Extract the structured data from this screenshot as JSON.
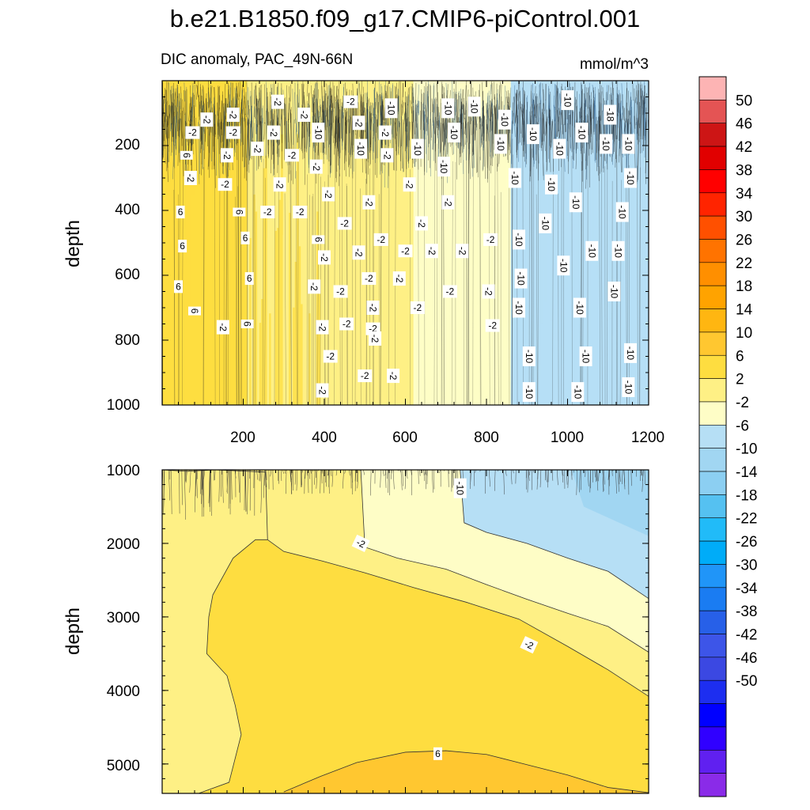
{
  "title": "b.e21.B1850.f09_g17.CMIP6-piControl.001",
  "subtitle_left": "DIC anomaly, PAC_49N-66N",
  "units": "mmol/m^3",
  "chart_data": [
    {
      "type": "heatmap",
      "panel": "upper",
      "ylabel": "depth",
      "xlim": [
        0,
        1200
      ],
      "ylim": [
        0,
        1000
      ],
      "y_reversed": true,
      "x_ticks": [
        200,
        400,
        600,
        800,
        1000,
        1200
      ],
      "y_ticks": [
        200,
        400,
        600,
        800,
        1000
      ],
      "field_regions": [
        {
          "x_range": [
            0,
            210
          ],
          "value_range": [
            2,
            6
          ]
        },
        {
          "x_range": [
            210,
            400
          ],
          "value_range": [
            -2,
            6
          ]
        },
        {
          "x_range": [
            400,
            620
          ],
          "value_range": [
            -2,
            2
          ]
        },
        {
          "x_range": [
            620,
            860
          ],
          "value_range": [
            -6,
            -2
          ]
        },
        {
          "x_range": [
            860,
            1200
          ],
          "value_range": [
            -10,
            -6
          ]
        }
      ],
      "contour_labels": [
        {
          "x": 110,
          "y": 120,
          "text": "-2"
        },
        {
          "x": 175,
          "y": 105,
          "text": "-2"
        },
        {
          "x": 285,
          "y": 65,
          "text": "-2"
        },
        {
          "x": 350,
          "y": 105,
          "text": "-2"
        },
        {
          "x": 465,
          "y": 65,
          "text": "-2"
        },
        {
          "x": 565,
          "y": 85,
          "text": "-10"
        },
        {
          "x": 705,
          "y": 85,
          "text": "-10"
        },
        {
          "x": 770,
          "y": 80,
          "text": "-10"
        },
        {
          "x": 845,
          "y": 120,
          "text": "-10"
        },
        {
          "x": 915,
          "y": 165,
          "text": "-10"
        },
        {
          "x": 1000,
          "y": 60,
          "text": "-10"
        },
        {
          "x": 1105,
          "y": 105,
          "text": "-18"
        },
        {
          "x": 75,
          "y": 160,
          "text": "-2"
        },
        {
          "x": 175,
          "y": 160,
          "text": "-2"
        },
        {
          "x": 275,
          "y": 160,
          "text": "-2"
        },
        {
          "x": 385,
          "y": 160,
          "text": "-10"
        },
        {
          "x": 485,
          "y": 130,
          "text": "-2"
        },
        {
          "x": 550,
          "y": 160,
          "text": "-2"
        },
        {
          "x": 720,
          "y": 160,
          "text": "-10"
        },
        {
          "x": 1035,
          "y": 160,
          "text": "-10"
        },
        {
          "x": 60,
          "y": 230,
          "text": "6"
        },
        {
          "x": 160,
          "y": 230,
          "text": "-2"
        },
        {
          "x": 235,
          "y": 210,
          "text": "-2"
        },
        {
          "x": 320,
          "y": 230,
          "text": "-2"
        },
        {
          "x": 490,
          "y": 210,
          "text": "-10"
        },
        {
          "x": 555,
          "y": 230,
          "text": "-2"
        },
        {
          "x": 630,
          "y": 210,
          "text": "-10"
        },
        {
          "x": 835,
          "y": 195,
          "text": "-10"
        },
        {
          "x": 980,
          "y": 210,
          "text": "-10"
        },
        {
          "x": 1095,
          "y": 195,
          "text": "-10"
        },
        {
          "x": 1150,
          "y": 195,
          "text": "-10"
        },
        {
          "x": 70,
          "y": 300,
          "text": "-2"
        },
        {
          "x": 155,
          "y": 320,
          "text": "-2"
        },
        {
          "x": 290,
          "y": 320,
          "text": "-2"
        },
        {
          "x": 380,
          "y": 265,
          "text": "-2"
        },
        {
          "x": 695,
          "y": 265,
          "text": "-10"
        },
        {
          "x": 870,
          "y": 300,
          "text": "-10"
        },
        {
          "x": 960,
          "y": 320,
          "text": "-10"
        },
        {
          "x": 1155,
          "y": 300,
          "text": "-10"
        },
        {
          "x": 410,
          "y": 350,
          "text": "-2"
        },
        {
          "x": 610,
          "y": 320,
          "text": "-2"
        },
        {
          "x": 45,
          "y": 405,
          "text": "6"
        },
        {
          "x": 190,
          "y": 405,
          "text": "6"
        },
        {
          "x": 260,
          "y": 405,
          "text": "-2"
        },
        {
          "x": 340,
          "y": 405,
          "text": "-2"
        },
        {
          "x": 510,
          "y": 375,
          "text": "-2"
        },
        {
          "x": 705,
          "y": 375,
          "text": "-2"
        },
        {
          "x": 1020,
          "y": 375,
          "text": "-10"
        },
        {
          "x": 1135,
          "y": 405,
          "text": "-10"
        },
        {
          "x": 450,
          "y": 440,
          "text": "-2"
        },
        {
          "x": 640,
          "y": 440,
          "text": "-2"
        },
        {
          "x": 945,
          "y": 440,
          "text": "-10"
        },
        {
          "x": 50,
          "y": 510,
          "text": "6"
        },
        {
          "x": 205,
          "y": 485,
          "text": "6"
        },
        {
          "x": 385,
          "y": 490,
          "text": "6"
        },
        {
          "x": 540,
          "y": 490,
          "text": "-2"
        },
        {
          "x": 810,
          "y": 490,
          "text": "-2"
        },
        {
          "x": 880,
          "y": 490,
          "text": "-10"
        },
        {
          "x": 400,
          "y": 545,
          "text": "-2"
        },
        {
          "x": 485,
          "y": 530,
          "text": "-2"
        },
        {
          "x": 600,
          "y": 525,
          "text": "-2"
        },
        {
          "x": 665,
          "y": 525,
          "text": "-2"
        },
        {
          "x": 740,
          "y": 525,
          "text": "-2"
        },
        {
          "x": 1060,
          "y": 525,
          "text": "-10"
        },
        {
          "x": 1125,
          "y": 525,
          "text": "-10"
        },
        {
          "x": 990,
          "y": 570,
          "text": "-10"
        },
        {
          "x": 510,
          "y": 610,
          "text": "-2"
        },
        {
          "x": 585,
          "y": 610,
          "text": "-2"
        },
        {
          "x": 885,
          "y": 610,
          "text": "-10"
        },
        {
          "x": 40,
          "y": 635,
          "text": "6"
        },
        {
          "x": 215,
          "y": 610,
          "text": "6"
        },
        {
          "x": 375,
          "y": 635,
          "text": "-2"
        },
        {
          "x": 440,
          "y": 650,
          "text": "-2"
        },
        {
          "x": 710,
          "y": 650,
          "text": "-2"
        },
        {
          "x": 805,
          "y": 650,
          "text": "-2"
        },
        {
          "x": 1115,
          "y": 650,
          "text": "-10"
        },
        {
          "x": 520,
          "y": 700,
          "text": "-2"
        },
        {
          "x": 630,
          "y": 700,
          "text": "-2"
        },
        {
          "x": 880,
          "y": 700,
          "text": "-10"
        },
        {
          "x": 1030,
          "y": 700,
          "text": "-10"
        },
        {
          "x": 80,
          "y": 710,
          "text": "6"
        },
        {
          "x": 150,
          "y": 760,
          "text": "-2"
        },
        {
          "x": 210,
          "y": 750,
          "text": "6"
        },
        {
          "x": 395,
          "y": 760,
          "text": "-2"
        },
        {
          "x": 455,
          "y": 750,
          "text": "-2"
        },
        {
          "x": 520,
          "y": 765,
          "text": "-2"
        },
        {
          "x": 815,
          "y": 755,
          "text": "-2"
        },
        {
          "x": 525,
          "y": 795,
          "text": "-2"
        },
        {
          "x": 415,
          "y": 850,
          "text": "-2"
        },
        {
          "x": 905,
          "y": 850,
          "text": "-10"
        },
        {
          "x": 1045,
          "y": 850,
          "text": "-10"
        },
        {
          "x": 1155,
          "y": 840,
          "text": "-10"
        },
        {
          "x": 500,
          "y": 910,
          "text": "-2"
        },
        {
          "x": 570,
          "y": 910,
          "text": "-2"
        },
        {
          "x": 395,
          "y": 955,
          "text": "-2"
        },
        {
          "x": 905,
          "y": 960,
          "text": "-10"
        },
        {
          "x": 1025,
          "y": 960,
          "text": "-10"
        },
        {
          "x": 1150,
          "y": 945,
          "text": "-10"
        }
      ]
    },
    {
      "type": "heatmap",
      "panel": "lower",
      "ylabel": "depth",
      "xlim": [
        0,
        1200
      ],
      "ylim": [
        1000,
        5400
      ],
      "y_reversed": true,
      "y_ticks": [
        1000,
        2000,
        3000,
        4000,
        5000
      ],
      "contour_lines": [
        {
          "level": -2,
          "points": [
            [
              0,
              1000
            ],
            [
              60,
              1020
            ],
            [
              130,
              1000
            ],
            [
              255,
              1030
            ],
            [
              260,
              1950
            ],
            [
              300,
              2110
            ],
            [
              395,
              2240
            ],
            [
              500,
              2400
            ],
            [
              620,
              2600
            ],
            [
              750,
              2800
            ],
            [
              880,
              3030
            ],
            [
              1000,
              3400
            ],
            [
              1100,
              3720
            ],
            [
              1200,
              4080
            ]
          ]
        },
        {
          "level": -6,
          "points": [
            [
              490,
              1000
            ],
            [
              500,
              2050
            ],
            [
              580,
              2200
            ],
            [
              700,
              2350
            ],
            [
              800,
              2560
            ],
            [
              900,
              2760
            ],
            [
              1000,
              2950
            ],
            [
              1100,
              3130
            ],
            [
              1200,
              3480
            ]
          ]
        },
        {
          "level": -10,
          "points": [
            [
              735,
              1000
            ],
            [
              745,
              1720
            ],
            [
              800,
              1850
            ],
            [
              900,
              2000
            ],
            [
              1000,
              2200
            ],
            [
              1100,
              2380
            ],
            [
              1200,
              2750
            ]
          ]
        },
        {
          "level": 6,
          "points": [
            [
              300,
              5380
            ],
            [
              390,
              5170
            ],
            [
              480,
              4980
            ],
            [
              600,
              4840
            ],
            [
              700,
              4820
            ],
            [
              800,
              4870
            ],
            [
              900,
              5010
            ],
            [
              1000,
              5150
            ],
            [
              1100,
              5320
            ],
            [
              1200,
              5390
            ]
          ]
        },
        {
          "level": 2,
          "points": [
            [
              90,
              5400
            ],
            [
              165,
              5250
            ],
            [
              195,
              4600
            ],
            [
              180,
              4200
            ],
            [
              160,
              3800
            ],
            [
              110,
              3500
            ],
            [
              115,
              3000
            ],
            [
              125,
              2700
            ],
            [
              175,
              2200
            ],
            [
              230,
              1950
            ],
            [
              260,
              1950
            ]
          ]
        }
      ],
      "contour_labels": [
        {
          "x": 490,
          "y": 2000,
          "text": "-2"
        },
        {
          "x": 905,
          "y": 3380,
          "text": "-2"
        },
        {
          "x": 735,
          "y": 1250,
          "text": "-10"
        },
        {
          "x": 680,
          "y": 4860,
          "text": "6"
        }
      ]
    }
  ],
  "x_tick_labels": [
    "200",
    "400",
    "600",
    "800",
    "1000",
    "1200"
  ],
  "y_tick_labels_upper": [
    "200",
    "400",
    "600",
    "800",
    "1000"
  ],
  "y_tick_labels_lower": [
    "1000",
    "2000",
    "3000",
    "4000",
    "5000"
  ],
  "colorbar": {
    "colors": [
      "#fdb4b4",
      "#e45454",
      "#cd1515",
      "#e10000",
      "#ff0000",
      "#ff2400",
      "#ff5000",
      "#ff7300",
      "#ff8f00",
      "#ffa300",
      "#ffb611",
      "#ffc730",
      "#fedd40",
      "#fef085",
      "#fefdc6",
      "#b6dff5",
      "#a1d6f2",
      "#8ccff2",
      "#55c1f1",
      "#21bbf8",
      "#00acf8",
      "#2095f8",
      "#1a7cf2",
      "#2760e8",
      "#3d55e8",
      "#3b48e2",
      "#1d2ef0",
      "#0000ff",
      "#3000ff",
      "#6020f0",
      "#8a2be8"
    ],
    "labels": [
      "50",
      "46",
      "42",
      "38",
      "34",
      "30",
      "26",
      "22",
      "18",
      "14",
      "10",
      "6",
      "2",
      "-2",
      "-6",
      "-10",
      "-14",
      "-18",
      "-22",
      "-26",
      "-30",
      "-34",
      "-38",
      "-42",
      "-46",
      "-50"
    ]
  }
}
